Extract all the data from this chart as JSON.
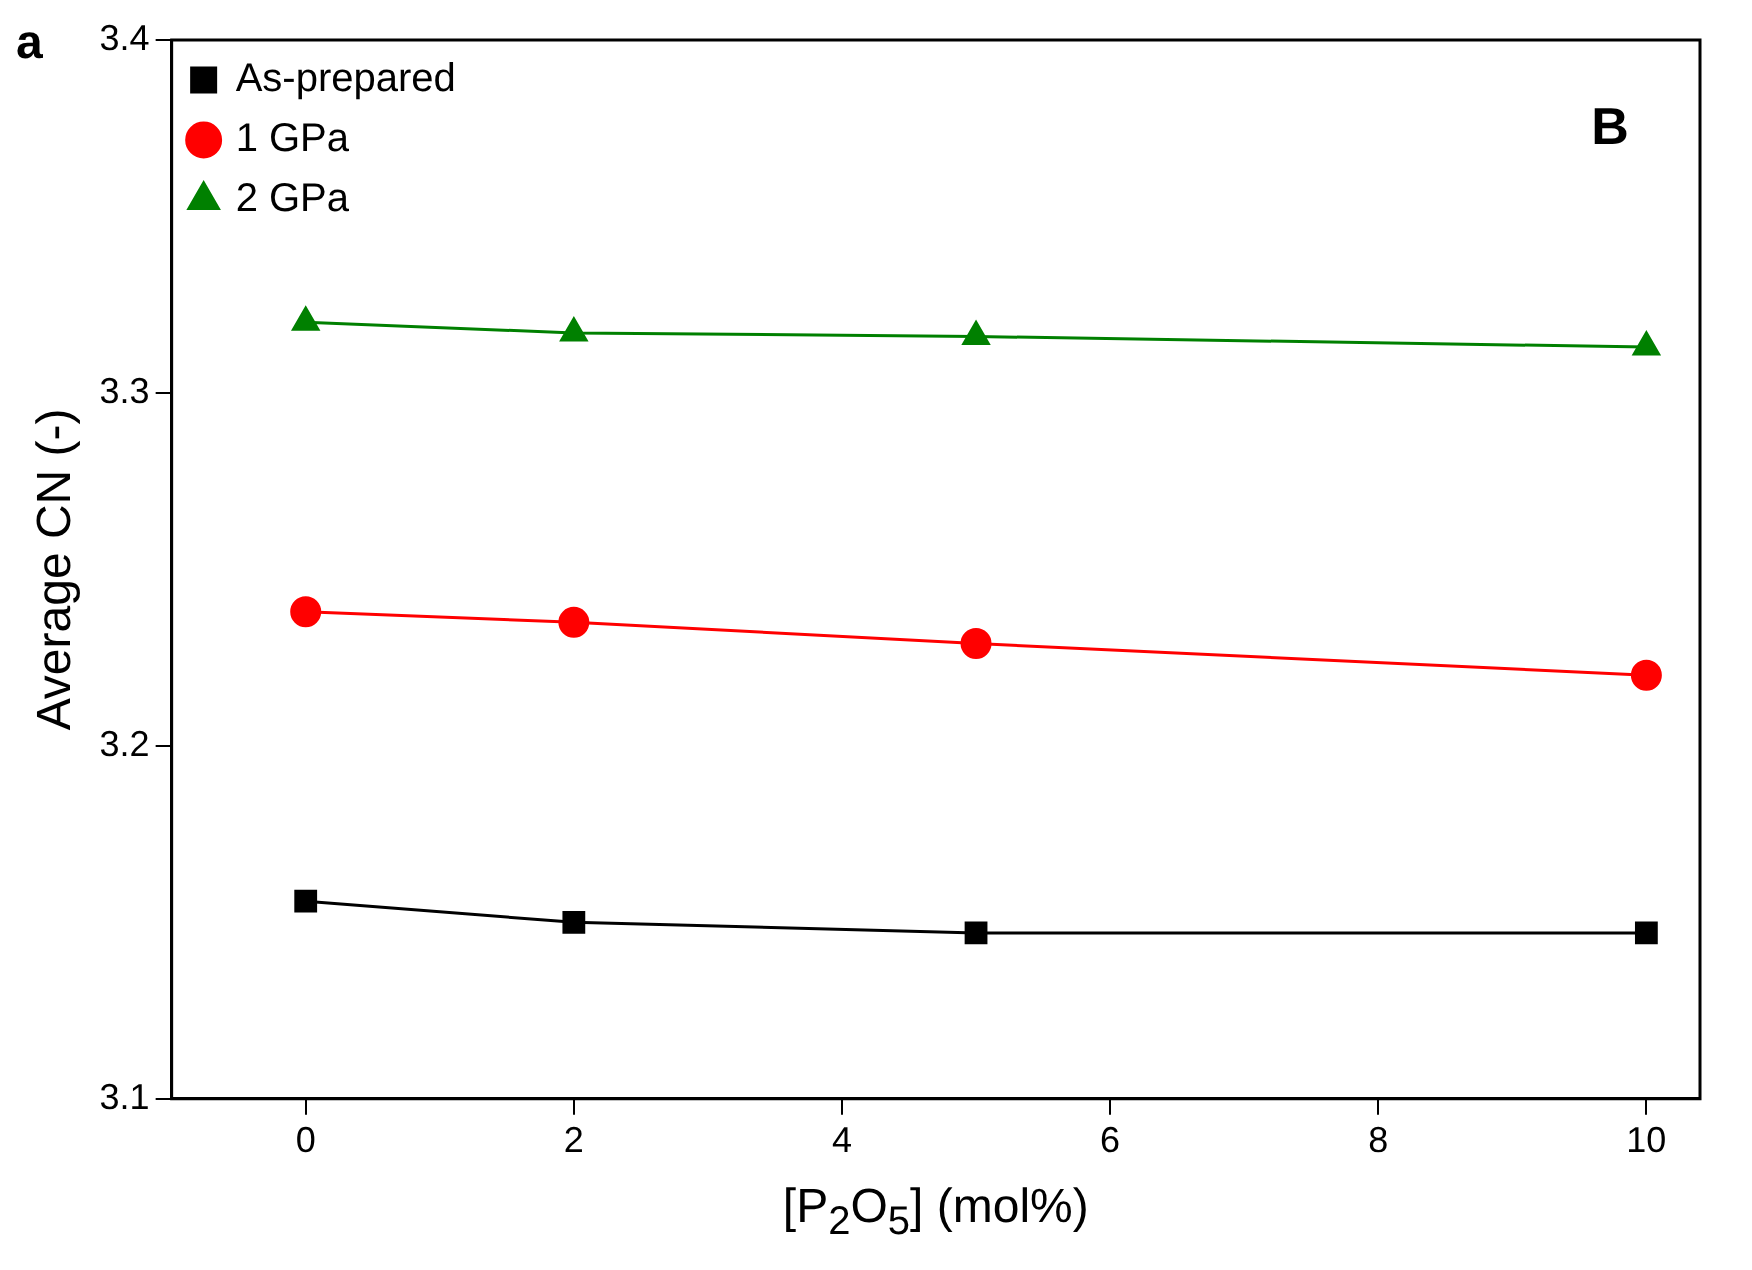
{
  "chart_data": {
    "type": "line",
    "xlabel": "[P$_{2}$O$_{5}$] (mol%)",
    "ylabel": "Average CN (-)",
    "annotations": [
      "a",
      "B"
    ],
    "x": [
      0,
      2,
      5,
      10
    ],
    "series": [
      {
        "name": "As-prepared",
        "color": "#000000",
        "marker": "square",
        "values": [
          3.156,
          3.15,
          3.147,
          3.147
        ]
      },
      {
        "name": "1 GPa",
        "color": "#ff0000",
        "marker": "circle",
        "values": [
          3.238,
          3.235,
          3.229,
          3.22
        ]
      },
      {
        "name": "2 GPa",
        "color": "#008000",
        "marker": "triangle",
        "values": [
          3.32,
          3.317,
          3.316,
          3.313
        ]
      }
    ],
    "xlim": [
      -1,
      10.4
    ],
    "xticks": [
      0,
      2,
      4,
      6,
      8,
      10
    ],
    "ylim": [
      3.1,
      3.4
    ],
    "yticks": [
      3.1,
      3.2,
      3.3,
      3.4
    ],
    "grid": false,
    "legend": "top left",
    "line_style": "solid"
  }
}
